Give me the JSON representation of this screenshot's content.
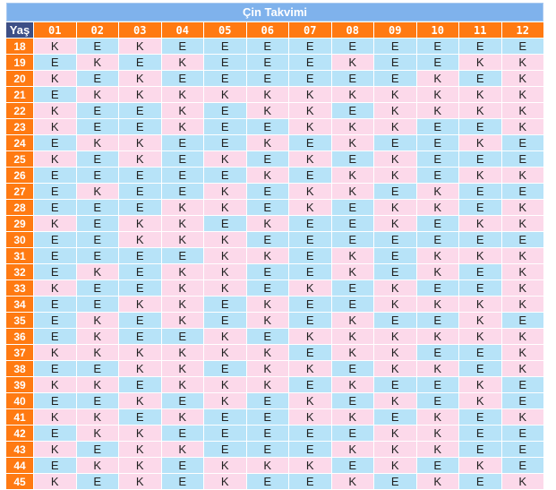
{
  "title": "Çin Takvimi",
  "age_header": "Yaş",
  "months": [
    "01",
    "02",
    "03",
    "04",
    "05",
    "06",
    "07",
    "08",
    "09",
    "10",
    "11",
    "12"
  ],
  "rows": [
    {
      "age": "18",
      "cells": [
        "K",
        "E",
        "K",
        "E",
        "E",
        "E",
        "E",
        "E",
        "E",
        "E",
        "E",
        "E"
      ]
    },
    {
      "age": "19",
      "cells": [
        "E",
        "K",
        "E",
        "K",
        "E",
        "E",
        "E",
        "K",
        "E",
        "E",
        "K",
        "K"
      ]
    },
    {
      "age": "20",
      "cells": [
        "K",
        "E",
        "K",
        "E",
        "E",
        "E",
        "E",
        "E",
        "E",
        "K",
        "E",
        "K"
      ]
    },
    {
      "age": "21",
      "cells": [
        "E",
        "K",
        "K",
        "K",
        "K",
        "K",
        "K",
        "K",
        "K",
        "K",
        "K",
        "K"
      ]
    },
    {
      "age": "22",
      "cells": [
        "K",
        "E",
        "E",
        "K",
        "E",
        "K",
        "K",
        "E",
        "K",
        "K",
        "K",
        "K"
      ]
    },
    {
      "age": "23",
      "cells": [
        "K",
        "E",
        "E",
        "K",
        "E",
        "E",
        "K",
        "K",
        "K",
        "E",
        "E",
        "K"
      ]
    },
    {
      "age": "24",
      "cells": [
        "E",
        "K",
        "K",
        "E",
        "E",
        "K",
        "E",
        "K",
        "E",
        "E",
        "K",
        "E"
      ]
    },
    {
      "age": "25",
      "cells": [
        "K",
        "E",
        "K",
        "E",
        "K",
        "E",
        "K",
        "E",
        "K",
        "E",
        "E",
        "E"
      ]
    },
    {
      "age": "26",
      "cells": [
        "E",
        "E",
        "E",
        "E",
        "E",
        "K",
        "E",
        "K",
        "K",
        "E",
        "K",
        "K"
      ]
    },
    {
      "age": "27",
      "cells": [
        "E",
        "K",
        "E",
        "E",
        "K",
        "E",
        "K",
        "K",
        "E",
        "K",
        "E",
        "E"
      ]
    },
    {
      "age": "28",
      "cells": [
        "E",
        "E",
        "E",
        "K",
        "K",
        "E",
        "K",
        "E",
        "K",
        "K",
        "E",
        "K"
      ]
    },
    {
      "age": "29",
      "cells": [
        "K",
        "E",
        "K",
        "K",
        "E",
        "K",
        "E",
        "E",
        "K",
        "E",
        "K",
        "K"
      ]
    },
    {
      "age": "30",
      "cells": [
        "E",
        "E",
        "K",
        "K",
        "K",
        "E",
        "E",
        "E",
        "E",
        "E",
        "E",
        "E"
      ]
    },
    {
      "age": "31",
      "cells": [
        "E",
        "E",
        "E",
        "E",
        "K",
        "K",
        "E",
        "K",
        "E",
        "K",
        "K",
        "K"
      ]
    },
    {
      "age": "32",
      "cells": [
        "E",
        "K",
        "E",
        "K",
        "K",
        "E",
        "E",
        "K",
        "E",
        "K",
        "E",
        "K"
      ]
    },
    {
      "age": "33",
      "cells": [
        "K",
        "E",
        "E",
        "K",
        "K",
        "E",
        "K",
        "E",
        "K",
        "E",
        "E",
        "K"
      ]
    },
    {
      "age": "34",
      "cells": [
        "E",
        "E",
        "K",
        "K",
        "E",
        "K",
        "E",
        "E",
        "K",
        "K",
        "K",
        "K"
      ]
    },
    {
      "age": "35",
      "cells": [
        "E",
        "K",
        "E",
        "K",
        "E",
        "K",
        "E",
        "K",
        "E",
        "E",
        "K",
        "E"
      ]
    },
    {
      "age": "36",
      "cells": [
        "E",
        "K",
        "E",
        "E",
        "K",
        "E",
        "K",
        "K",
        "K",
        "K",
        "K",
        "K"
      ]
    },
    {
      "age": "37",
      "cells": [
        "K",
        "K",
        "K",
        "K",
        "K",
        "K",
        "E",
        "K",
        "K",
        "E",
        "E",
        "K"
      ]
    },
    {
      "age": "38",
      "cells": [
        "E",
        "E",
        "K",
        "K",
        "E",
        "K",
        "K",
        "E",
        "K",
        "K",
        "E",
        "K"
      ]
    },
    {
      "age": "39",
      "cells": [
        "K",
        "K",
        "E",
        "K",
        "K",
        "K",
        "E",
        "K",
        "E",
        "E",
        "K",
        "E"
      ]
    },
    {
      "age": "40",
      "cells": [
        "E",
        "E",
        "K",
        "E",
        "K",
        "E",
        "K",
        "E",
        "K",
        "E",
        "K",
        "E"
      ]
    },
    {
      "age": "41",
      "cells": [
        "K",
        "K",
        "E",
        "K",
        "E",
        "E",
        "K",
        "K",
        "E",
        "K",
        "E",
        "K"
      ]
    },
    {
      "age": "42",
      "cells": [
        "E",
        "K",
        "K",
        "E",
        "E",
        "E",
        "E",
        "E",
        "K",
        "K",
        "E",
        "E"
      ]
    },
    {
      "age": "43",
      "cells": [
        "K",
        "E",
        "K",
        "K",
        "E",
        "E",
        "E",
        "K",
        "K",
        "K",
        "E",
        "E"
      ]
    },
    {
      "age": "44",
      "cells": [
        "E",
        "K",
        "K",
        "E",
        "K",
        "K",
        "K",
        "E",
        "K",
        "E",
        "K",
        "E"
      ]
    },
    {
      "age": "45",
      "cells": [
        "K",
        "E",
        "K",
        "E",
        "K",
        "E",
        "E",
        "K",
        "E",
        "K",
        "E",
        "K"
      ]
    }
  ],
  "colors": {
    "title_bar": "#7fb2ec",
    "age_header_bg": "#3d4f86",
    "header_orange": "#ff7a12",
    "E_cell": "#b7e3f8",
    "K_cell": "#fcd9ea"
  }
}
